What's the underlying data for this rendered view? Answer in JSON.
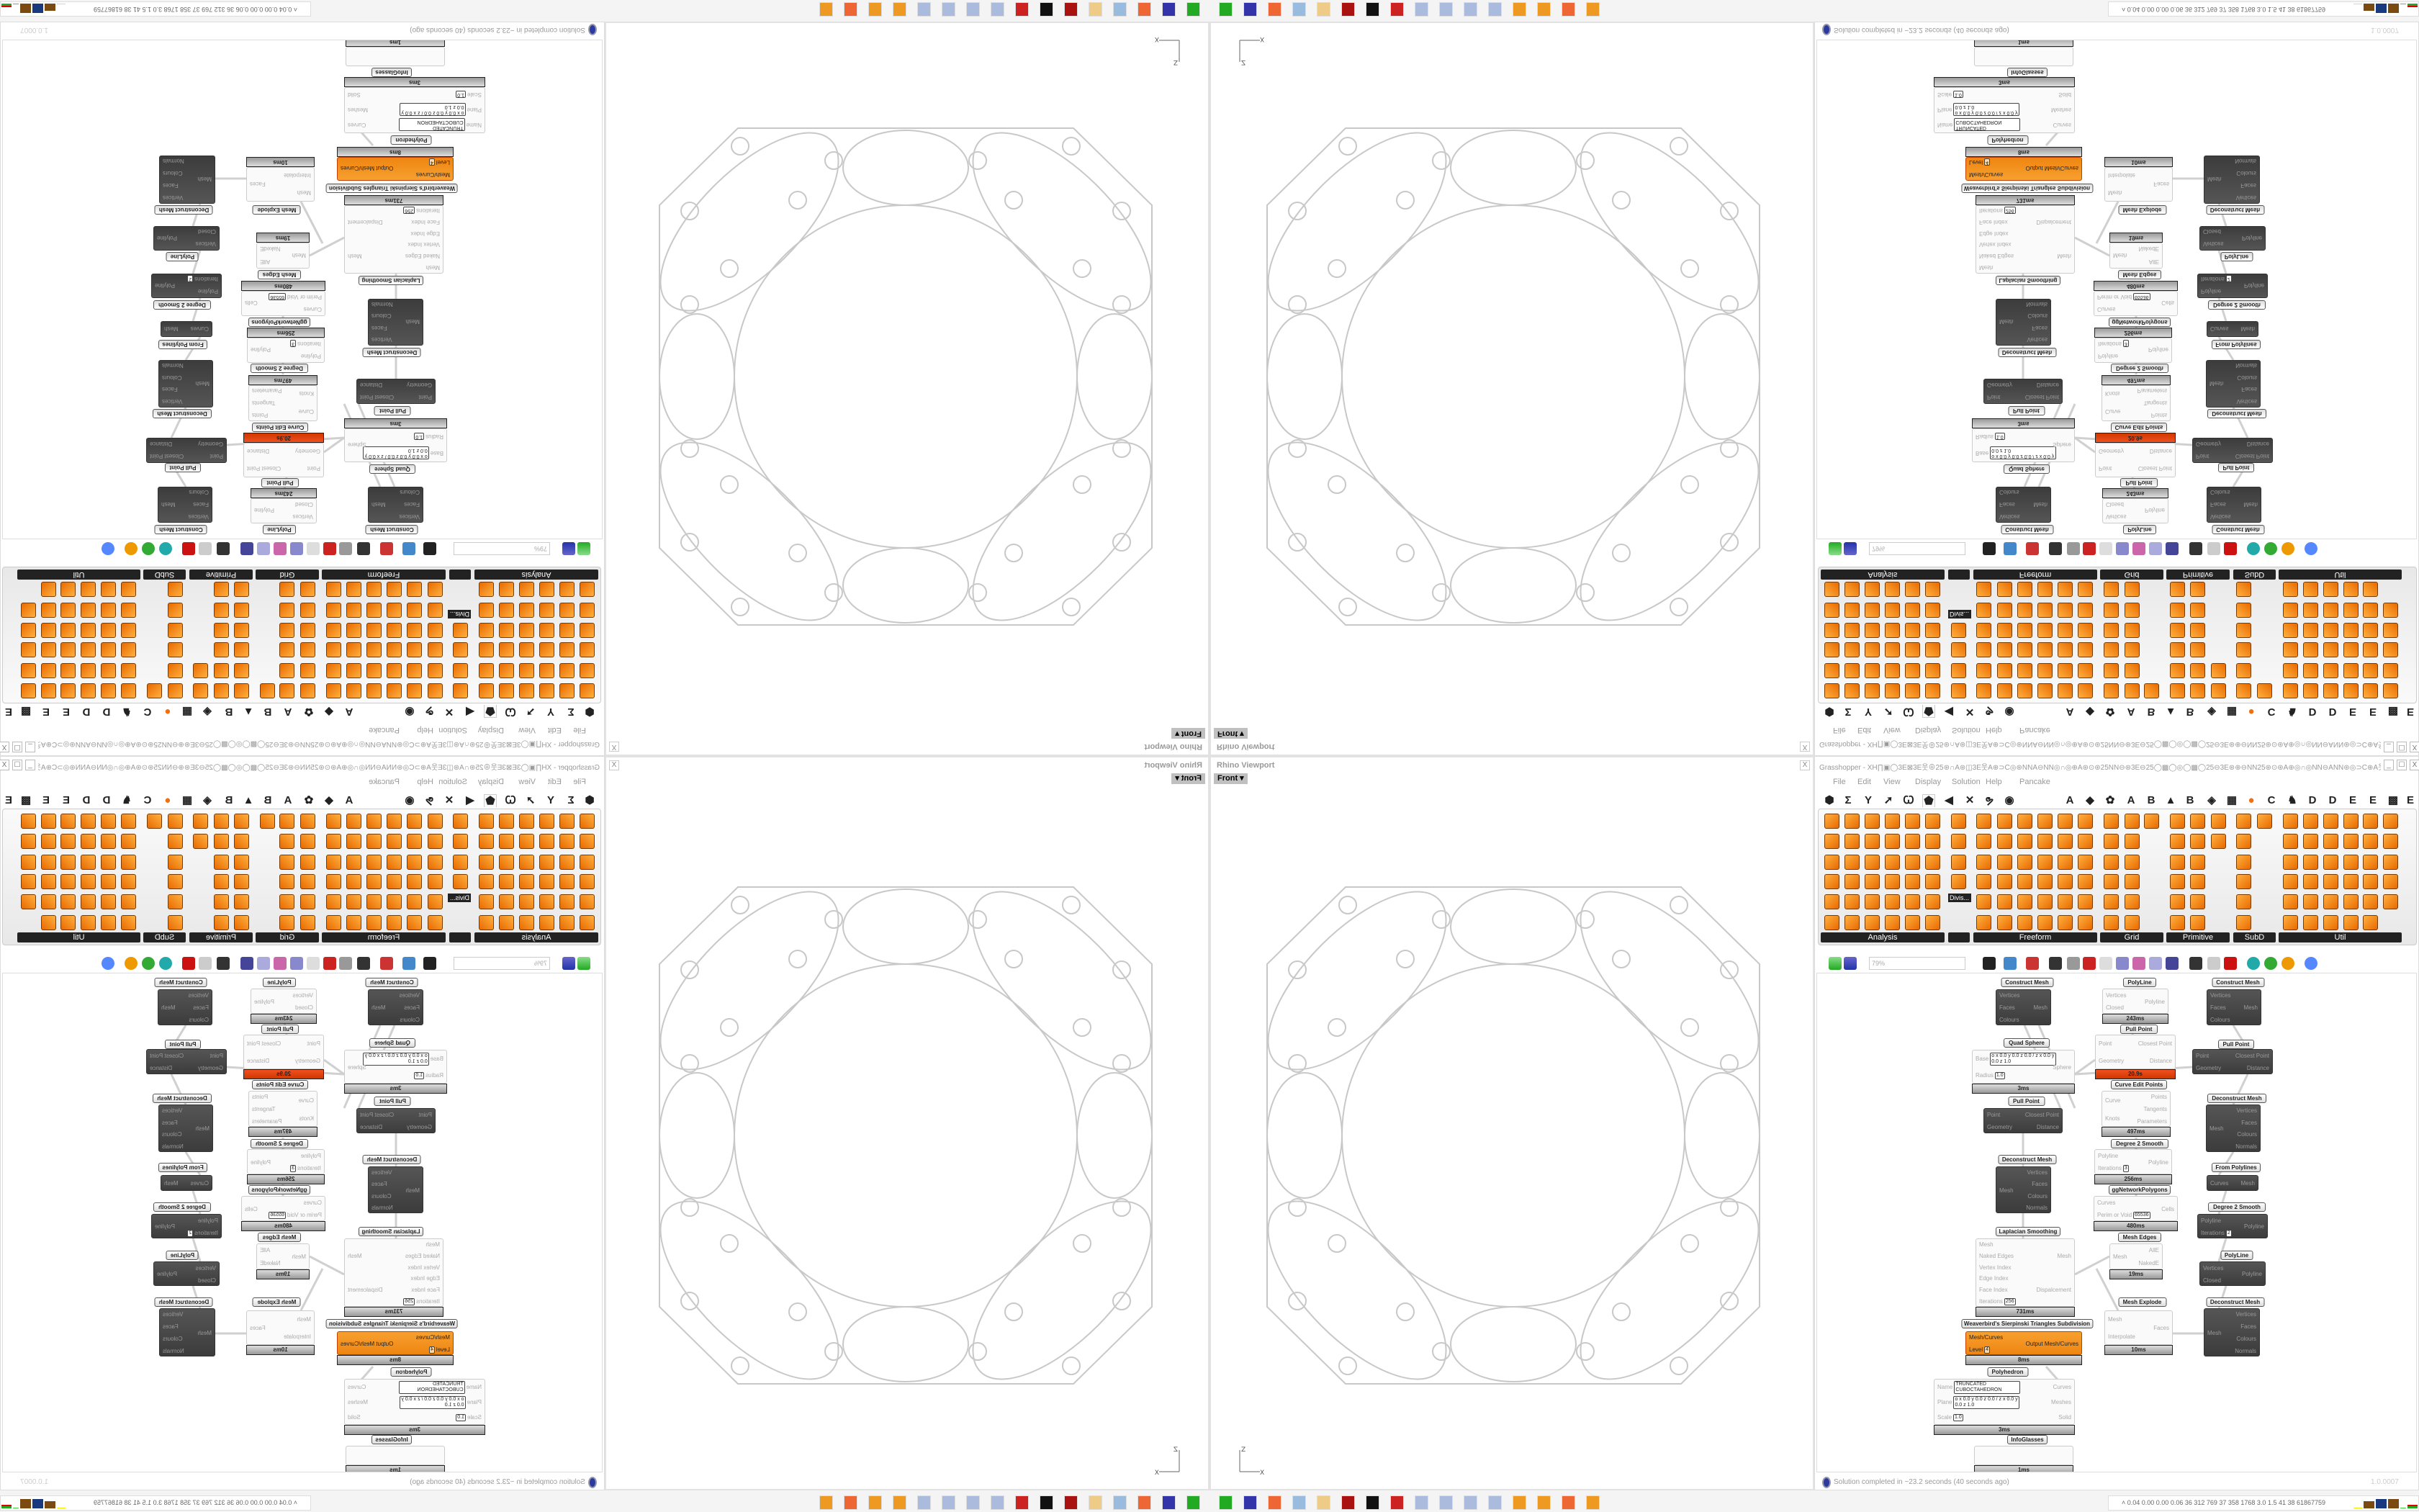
{
  "rhino_viewport": {
    "title": "Rhino Viewport",
    "close_label": "X",
    "view_button": "Front",
    "axis_labels": {
      "x": "X",
      "z": "Z"
    },
    "geometry_color": "#c8c8c8"
  },
  "grasshopper": {
    "title": "Grasshopper - XH∏▣◯3E⊠3E웃⊕25⊛∩A⊛◫3E웃A⊕⊃C◎⊛NNA⊖NN◎∩◎⊕A⊛⊙⊛25NN⊖⊛3E⊖25◯▩◯◎◯▩◯25⊖3E⊛⊕⊖NN25⊛⊙⊛A⊕◎∩◎NN⊖ANN⊛◎⊃C⊕A웃3E◫A∩⊛...",
    "window_buttons": [
      "_",
      "☐",
      "X"
    ],
    "menu": [
      "File",
      "Edit",
      "View",
      "Display",
      "Solution",
      "Help",
      "Pancake"
    ],
    "tab_icons": [
      "⬢",
      "Σ",
      "Y",
      "➚",
      "Ꞷ",
      "⬟",
      "◀",
      "✕",
      "ຯ",
      "◉"
    ],
    "tab_letters": [
      "A",
      "◆",
      "✿",
      "A",
      "B",
      "▲",
      "B",
      "◈",
      "▦",
      "●",
      "C",
      "♞",
      "D",
      "D",
      "E",
      "E",
      "▩",
      "E"
    ],
    "ribbon_panels": [
      "Analysis",
      "Freeform",
      "Grid",
      "Primitive",
      "SubD",
      "Util"
    ],
    "divis_tooltip": "Divis...",
    "zoom_value": "79%",
    "accent_orange": "#f39019",
    "status": {
      "text": "Solution completed in ~23.2 seconds (40 seconds ago)",
      "version": "1.0.0007"
    },
    "nodes": [
      {
        "title": "Construct Mesh",
        "style": "dark",
        "inputs": [
          {
            "name": "Vertices"
          },
          {
            "name": "Faces"
          },
          {
            "name": "Colours"
          }
        ],
        "outputs": [
          "Mesh"
        ]
      },
      {
        "title": "PolyLine",
        "style": "white",
        "inputs": [
          {
            "name": "Vertices"
          },
          {
            "name": "Closed"
          }
        ],
        "outputs": [
          "Polyline"
        ],
        "timing": "243ms"
      },
      {
        "title": "Construct Mesh",
        "style": "dark",
        "inputs": [
          {
            "name": "Vertices"
          },
          {
            "name": "Faces"
          },
          {
            "name": "Colours"
          }
        ],
        "outputs": [
          "Mesh"
        ]
      },
      {
        "title": "Pull Point",
        "style": "white",
        "inputs": [
          {
            "name": "Point"
          },
          {
            "name": "Geometry"
          }
        ],
        "outputs": [
          "Closest Point",
          "Distance"
        ],
        "timing": "20.9s",
        "timing_alert": true
      },
      {
        "title": "Quad Sphere",
        "style": "white",
        "inputs": [
          {
            "name": "Base",
            "value": "o x 0.0 y 0.0 z 0.0 / z x 0.0 y 0.0 z 1.0"
          },
          {
            "name": "Radius",
            "value": "1.0"
          }
        ],
        "outputs": [
          "Sphere"
        ],
        "timing": "3ms"
      },
      {
        "title": "Pull Point",
        "style": "dark",
        "inputs": [
          {
            "name": "Point"
          },
          {
            "name": "Geometry"
          }
        ],
        "outputs": [
          "Closest Point",
          "Distance"
        ]
      },
      {
        "title": "Curve Edit Points",
        "style": "white",
        "inputs": [
          {
            "name": "Curve"
          },
          {
            "name": "Knots"
          }
        ],
        "outputs": [
          "Points",
          "Tangents",
          "Parameters"
        ],
        "timing": "497ms"
      },
      {
        "title": "Pull Point",
        "style": "dark",
        "inputs": [
          {
            "name": "Point"
          },
          {
            "name": "Geometry"
          }
        ],
        "outputs": [
          "Closest Point",
          "Distance"
        ]
      },
      {
        "title": "Deconstruct Mesh",
        "style": "dark",
        "inputs": [
          {
            "name": "Mesh"
          }
        ],
        "outputs": [
          "Vertices",
          "Faces",
          "Colours",
          "Normals"
        ]
      },
      {
        "title": "Degree 2 Smooth",
        "style": "white",
        "inputs": [
          {
            "name": "Polyline"
          },
          {
            "name": "Iterations",
            "value": "3"
          }
        ],
        "outputs": [
          "Polyline"
        ],
        "timing": "256ms"
      },
      {
        "title": "Deconstruct Mesh",
        "style": "dark",
        "inputs": [
          {
            "name": "Mesh"
          }
        ],
        "outputs": [
          "Vertices",
          "Faces",
          "Colours",
          "Normals"
        ]
      },
      {
        "title": "From Polylines",
        "style": "dark",
        "inputs": [
          {
            "name": "Curves"
          }
        ],
        "outputs": [
          "Mesh"
        ]
      },
      {
        "title": "ggNetworkPolygons",
        "style": "white",
        "inputs": [
          {
            "name": "Curves"
          },
          {
            "name": "Perim or Void",
            "value": "65536"
          }
        ],
        "outputs": [
          "Cells"
        ],
        "timing": "480ms"
      },
      {
        "title": "Degree 2 Smooth",
        "style": "dark",
        "inputs": [
          {
            "name": "Polyline"
          },
          {
            "name": "Iterations",
            "value": "2"
          }
        ],
        "outputs": [
          "Polyline"
        ]
      },
      {
        "title": "Mesh Edges",
        "style": "white",
        "inputs": [
          {
            "name": "Mesh"
          }
        ],
        "outputs": [
          "AllE",
          "NakedE"
        ],
        "timing": "19ms"
      },
      {
        "title": "Laplacian Smoothing",
        "style": "white",
        "inputs": [
          {
            "name": "Mesh"
          },
          {
            "name": "Naked Edges"
          },
          {
            "name": "Vertex Index"
          },
          {
            "name": "Edge Index"
          },
          {
            "name": "Face Index"
          },
          {
            "name": "Iterations",
            "value": "256"
          }
        ],
        "outputs": [
          "Mesh",
          "Dispalcement"
        ],
        "timing": "731ms"
      },
      {
        "title": "PolyLine",
        "style": "dark",
        "inputs": [
          {
            "name": "Vertices"
          },
          {
            "name": "Closed"
          }
        ],
        "outputs": [
          "Polyline"
        ]
      },
      {
        "title": "Deconstruct Mesh",
        "style": "dark",
        "inputs": [
          {
            "name": "Mesh"
          }
        ],
        "outputs": [
          "Vertices",
          "Faces",
          "Colours",
          "Normals"
        ]
      },
      {
        "title": "Mesh Explode",
        "style": "white",
        "inputs": [
          {
            "name": "Mesh"
          },
          {
            "name": "Interpolate"
          }
        ],
        "outputs": [
          "Faces"
        ],
        "timing": "10ms"
      },
      {
        "title": "Weaverbird's Sierpinski Triangles Subdivision",
        "style": "orange",
        "inputs": [
          {
            "name": "Mesh/Curves"
          },
          {
            "name": "Level",
            "value": "4"
          }
        ],
        "outputs": [
          "Output Mesh/Curves"
        ],
        "timing": "8ms"
      },
      {
        "title": "Polyhedron",
        "style": "white",
        "inputs": [
          {
            "name": "Name",
            "value": "TRUNCATED CUBOCTAHEDRON"
          },
          {
            "name": "Plane",
            "value": "o x 0.0 y 0.0 z 0.0 / z x 0.0 y 0.0 z 1.0"
          },
          {
            "name": "Scale",
            "value": "1.0"
          }
        ],
        "outputs": [
          "Curves",
          "Meshes",
          "Solid"
        ],
        "timing": "3ms"
      },
      {
        "title": "InfoGlasses",
        "style": "white",
        "inputs": [],
        "outputs": [],
        "timing": "1ms"
      }
    ]
  },
  "taskbar": {
    "icons": [
      "terminal-icon",
      "floppy-64-icon",
      "firefox-icon",
      "calculator-icon",
      "folder-icon",
      "app-icon",
      "inkscape-icon",
      "settings-icon",
      "paint-icon",
      "paint-icon",
      "paint-icon",
      "paint-icon",
      "blender-icon",
      "blender-icon",
      "firefox-icon",
      "blender-icon"
    ],
    "tray_text": "0.04 0.00 0.00 0.06  36  312  769  37  358 1768 3.0  1.5  41  38 61867759"
  }
}
